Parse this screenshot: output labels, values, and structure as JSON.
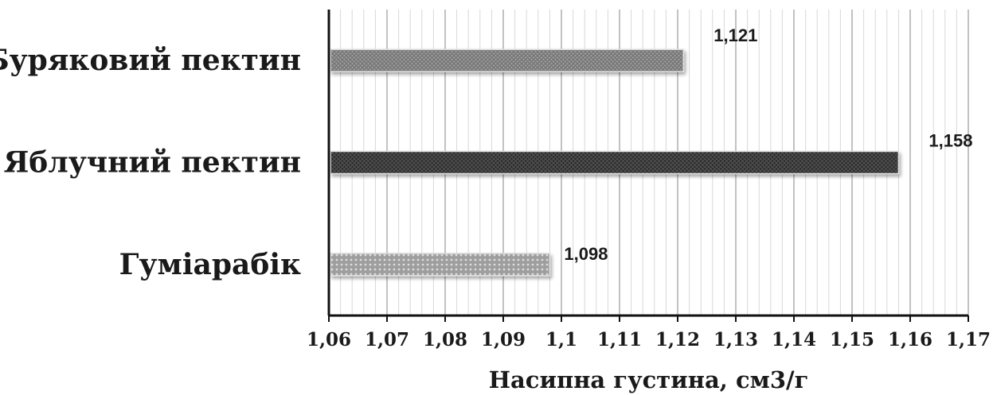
{
  "chart_data": {
    "type": "bar",
    "orientation": "horizontal",
    "title": "",
    "xlabel": "Насипна густина, см3/г",
    "ylabel": "",
    "xlim": [
      1.06,
      1.17
    ],
    "major_tick_step": 0.01,
    "minor_grid_step": 0.002,
    "grid": true,
    "legend": "none",
    "decimal_separator": ",",
    "tick_labels": [
      "1,06",
      "1,07",
      "1,08",
      "1,09",
      "1,1",
      "1,11",
      "1,12",
      "1,13",
      "1,14",
      "1,15",
      "1,16",
      "1,17"
    ],
    "categories": [
      "Буряковий пектин",
      "Яблучний пектин",
      "Гуміарабік"
    ],
    "values": [
      1.121,
      1.158,
      1.098
    ],
    "data_labels": [
      "1,121",
      "1,158",
      "1,098"
    ],
    "bar_colors": [
      "#8c8c8c",
      "#262626",
      "#a6a6a6"
    ],
    "bar_patterns": [
      "crosshatch",
      "dark-crosshatch",
      "dots"
    ]
  }
}
